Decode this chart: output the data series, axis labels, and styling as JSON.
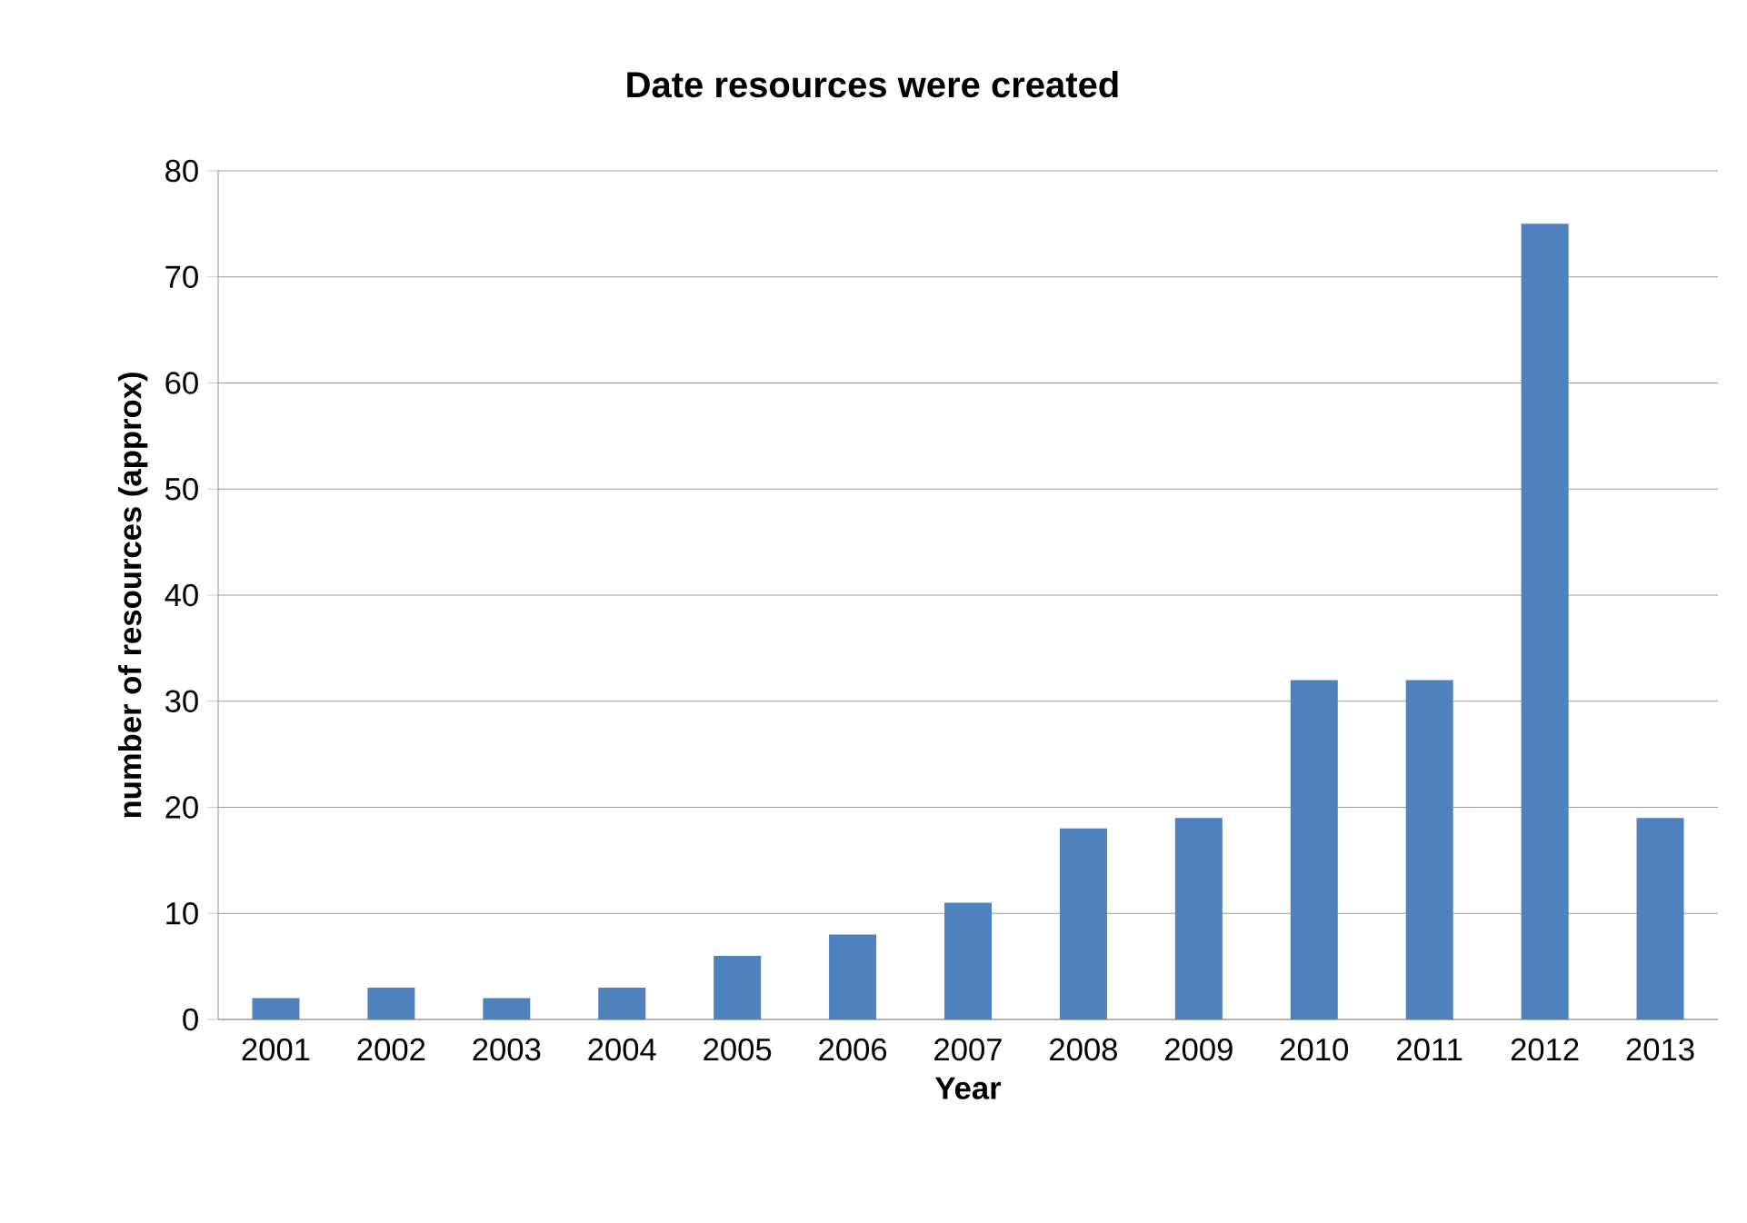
{
  "chart_data": {
    "type": "bar",
    "title": "Date resources were created",
    "xlabel": "Year",
    "ylabel": "number of resources (approx)",
    "categories": [
      "2001",
      "2002",
      "2003",
      "2004",
      "2005",
      "2006",
      "2007",
      "2008",
      "2009",
      "2010",
      "2011",
      "2012",
      "2013"
    ],
    "values": [
      2,
      3,
      2,
      3,
      6,
      8,
      11,
      18,
      19,
      32,
      32,
      75,
      19
    ],
    "color": "#4f81bd",
    "ylim": [
      0,
      80
    ],
    "yticks": [
      0,
      10,
      20,
      30,
      40,
      50,
      60,
      70,
      80
    ],
    "grid": "y"
  }
}
